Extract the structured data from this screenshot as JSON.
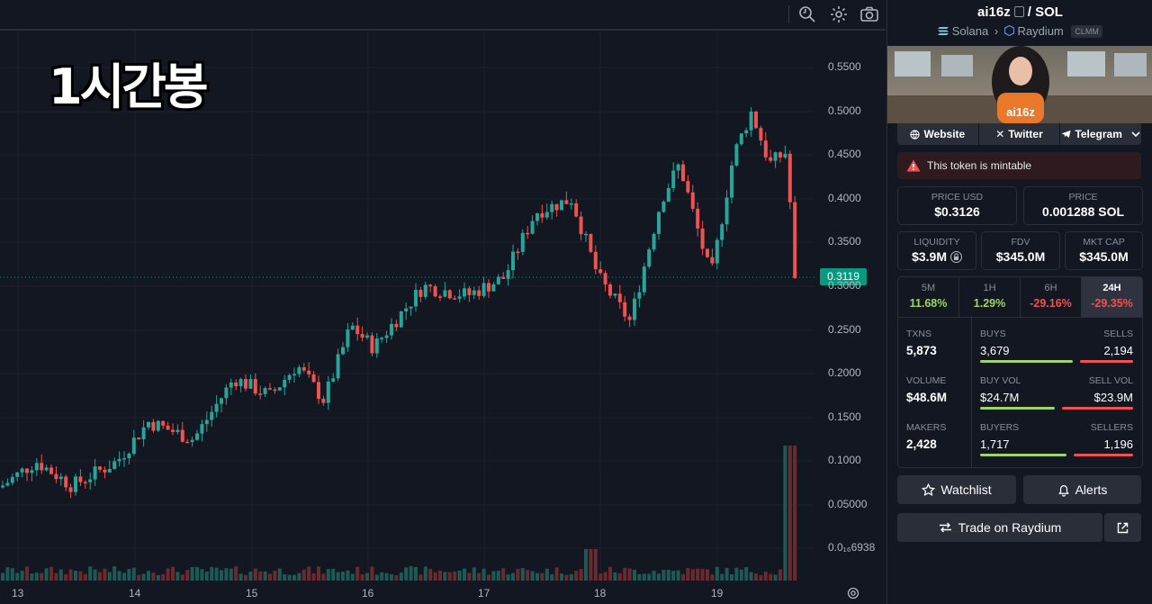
{
  "chart": {
    "watermark": "1시간봉",
    "current_price_label": "0.3119",
    "y_axis_labels": [
      "0.5500",
      "0.5000",
      "0.4500",
      "0.4000",
      "0.3500",
      "0.3000",
      "0.2500",
      "0.2000",
      "0.1500",
      "0.1000",
      "0.05000",
      "0.0₁₆6938"
    ],
    "x_axis_labels": [
      "13",
      "14",
      "15",
      "16",
      "17",
      "18",
      "19"
    ],
    "toolbar_icons": [
      "zoom-magnify-icon",
      "settings-gear-icon",
      "camera-icon"
    ],
    "colors": {
      "up": "#26a69a",
      "down": "#ef5350",
      "background": "#131722"
    }
  },
  "pair": {
    "base": "ai16z",
    "separator": "/",
    "quote": "SOL"
  },
  "chain": {
    "network": "Solana",
    "dex": "Raydium",
    "pool_type": "CLMM"
  },
  "banner": {
    "title": "ai16z"
  },
  "links": {
    "website": "Website",
    "twitter": "Twitter",
    "telegram": "Telegram"
  },
  "warning": "This token is mintable",
  "price_usd": {
    "label": "PRICE USD",
    "value": "$0.3126"
  },
  "price_native": {
    "label": "PRICE",
    "value": "0.001288 SOL"
  },
  "liquidity": {
    "label": "LIQUIDITY",
    "value": "$3.9M"
  },
  "fdv": {
    "label": "FDV",
    "value": "$345.0M"
  },
  "mkt_cap": {
    "label": "MKT CAP",
    "value": "$345.0M"
  },
  "timeframes": [
    {
      "label": "5M",
      "change": "11.68%",
      "color": "#a0d468"
    },
    {
      "label": "1H",
      "change": "1.29%",
      "color": "#a0d468"
    },
    {
      "label": "6H",
      "change": "-29.16%",
      "color": "#ef5350"
    },
    {
      "label": "24H",
      "change": "-29.35%",
      "color": "#ef5350"
    }
  ],
  "stats": {
    "txns_label": "TXNS",
    "txns": "5,873",
    "buys_label": "BUYS",
    "buys": "3,679",
    "sells_label": "SELLS",
    "sells": "2,194",
    "volume_label": "VOLUME",
    "volume": "$48.6M",
    "buy_vol_label": "BUY VOL",
    "buy_vol": "$24.7M",
    "sell_vol_label": "SELL VOL",
    "sell_vol": "$23.9M",
    "makers_label": "MAKERS",
    "makers": "2,428",
    "buyers_label": "BUYERS",
    "buyers": "1,717",
    "sellers_label": "SELLERS",
    "sellers": "1,196",
    "buy_ratio": 0.63,
    "buy_vol_ratio": 0.51,
    "buyers_ratio": 0.59
  },
  "actions": {
    "watchlist": "Watchlist",
    "alerts": "Alerts",
    "trade": "Trade on Raydium"
  }
}
